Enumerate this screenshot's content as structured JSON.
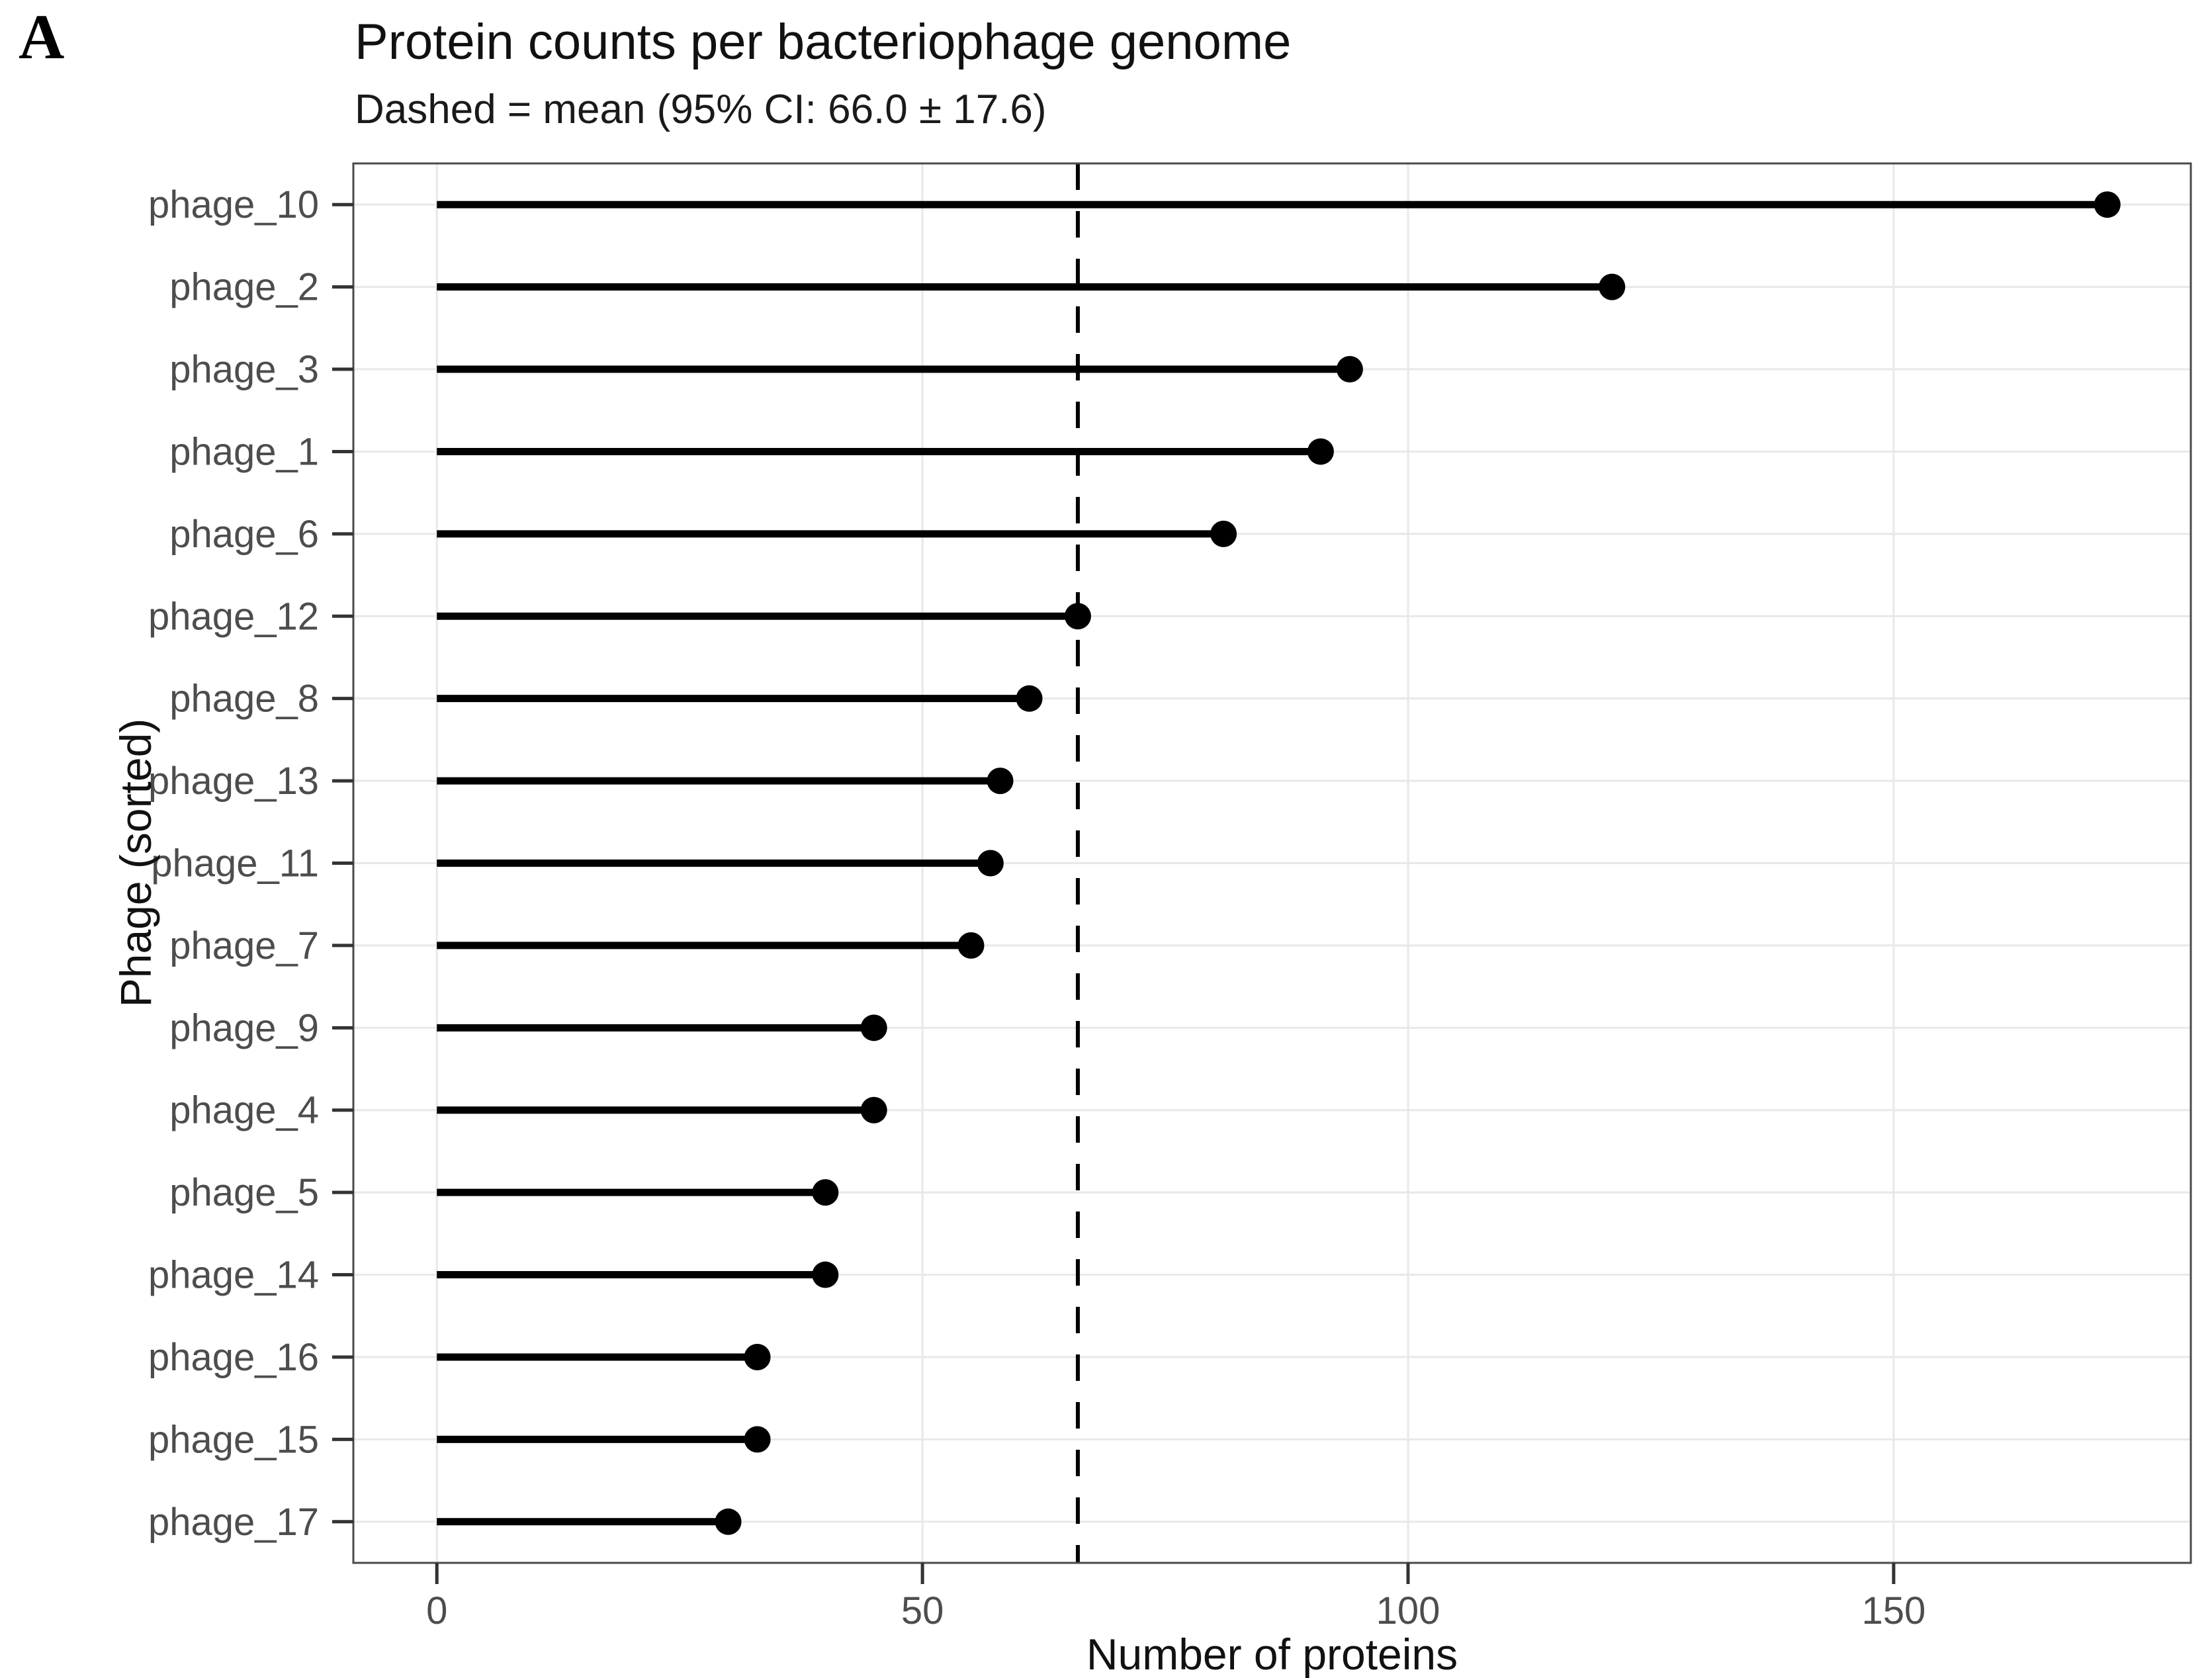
{
  "figure": {
    "tag": "A"
  },
  "chart_data": {
    "type": "lollipop",
    "title": "Protein counts per bacteriophage genome",
    "subtitle": "Dashed = mean (95% CI: 66.0 ± 17.6)",
    "xlabel": "Number of proteins",
    "ylabel": "Phage (sorted)",
    "categories": [
      "phage_10",
      "phage_2",
      "phage_3",
      "phage_1",
      "phage_6",
      "phage_12",
      "phage_8",
      "phage_13",
      "phage_11",
      "phage_7",
      "phage_9",
      "phage_4",
      "phage_5",
      "phage_14",
      "phage_16",
      "phage_15",
      "phage_17"
    ],
    "values": [
      172,
      121,
      94,
      91,
      81,
      66,
      61,
      58,
      57,
      55,
      45,
      45,
      40,
      40,
      33,
      33,
      30
    ],
    "mean": 66.0,
    "ci_halfwidth": 17.6,
    "mean_line_style": "dashed",
    "x_ticks": [
      0,
      50,
      100,
      150
    ],
    "xlim": [
      -8.6,
      180.6
    ],
    "stem_origin": 0,
    "grid": "major-only",
    "legend": "none",
    "colors": {
      "point": "#000000",
      "stem": "#000000",
      "mean_line": "#000000",
      "grid": "#e8e8e8",
      "panel_border": "#4a4a4a",
      "tick_mark": "#333333",
      "tick_text": "#4d4d4d",
      "title_text": "#111111"
    }
  }
}
